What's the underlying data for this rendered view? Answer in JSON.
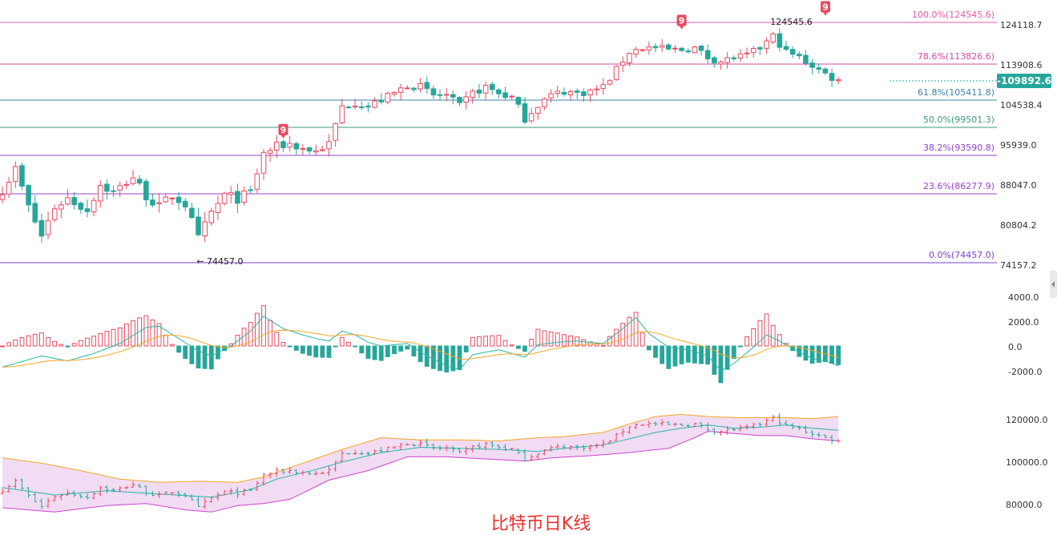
{
  "caption": "比特币日K线",
  "colors": {
    "up": "#e84a5f",
    "down": "#26a69a",
    "ma_fast": "#26b5a8",
    "ma_slow": "#f5a623",
    "band_fill": "#f1dcf3",
    "band_lower": "#cc44cc",
    "current_price_bg": "#26a69a",
    "td_marker": "#e84a5f"
  },
  "price_axis": {
    "ticks": [
      "124118.7",
      "113908.6",
      "104538.4",
      "95939.0",
      "88047.0",
      "80804.2",
      "74157.2"
    ]
  },
  "macd_axis": {
    "ticks": [
      "4000.0",
      "2000.0",
      "0.0",
      "-2000.0"
    ]
  },
  "boll_axis": {
    "ticks": [
      "120000.0",
      "100000.0",
      "80000.0"
    ]
  },
  "current_price": "109892.6",
  "annotations": {
    "high_label": "124545.6",
    "low_label": "74457.0",
    "td_marker": "9"
  },
  "chart_data": {
    "type": "candlestick",
    "price_ylim": [
      74157.2,
      124118.7
    ],
    "fib_levels": [
      {
        "label": "100.0%(124545.6)",
        "value": 124545.6,
        "color": "#e05aa8"
      },
      {
        "label": "78.6%(113826.6)",
        "value": 113826.6,
        "color": "#d14ca5"
      },
      {
        "label": "61.8%(105411.8)",
        "value": 105411.8,
        "color": "#3d7fa8"
      },
      {
        "label": "50.0%(99501.3)",
        "value": 99501.3,
        "color": "#3a9a7a"
      },
      {
        "label": "38.2%(93590.8)",
        "value": 93590.8,
        "color": "#8e3fc8"
      },
      {
        "label": "23.6%(86277.9)",
        "value": 86277.9,
        "color": "#9f3fc8"
      },
      {
        "label": "0.0%(74457.0)",
        "value": 74457.0,
        "color": "#7a3fc8"
      }
    ],
    "close_path": [
      [
        0,
        87000
      ],
      [
        2,
        91000
      ],
      [
        4,
        84000
      ],
      [
        6,
        79000
      ],
      [
        8,
        84000
      ],
      [
        10,
        85500
      ],
      [
        13,
        83500
      ],
      [
        15,
        88000
      ],
      [
        17,
        86500
      ],
      [
        20,
        89500
      ],
      [
        22,
        86000
      ],
      [
        24,
        84000
      ],
      [
        26,
        86000
      ],
      [
        28,
        84500
      ],
      [
        30,
        78500
      ],
      [
        32,
        83000
      ],
      [
        34,
        86000
      ],
      [
        36,
        85500
      ],
      [
        38,
        86500
      ],
      [
        40,
        94000
      ],
      [
        42,
        95500
      ],
      [
        44,
        96000
      ],
      [
        46,
        95000
      ],
      [
        48,
        94500
      ],
      [
        50,
        96000
      ],
      [
        52,
        104000
      ],
      [
        54,
        105000
      ],
      [
        56,
        104000
      ],
      [
        58,
        105500
      ],
      [
        60,
        107000
      ],
      [
        62,
        109000
      ],
      [
        64,
        108500
      ],
      [
        66,
        106500
      ],
      [
        68,
        106500
      ],
      [
        70,
        104000
      ],
      [
        72,
        107000
      ],
      [
        74,
        108500
      ],
      [
        76,
        107000
      ],
      [
        78,
        106000
      ],
      [
        80,
        101500
      ],
      [
        82,
        104500
      ],
      [
        84,
        106500
      ],
      [
        86,
        107500
      ],
      [
        88,
        107000
      ],
      [
        90,
        107500
      ],
      [
        92,
        108500
      ],
      [
        94,
        112500
      ],
      [
        96,
        117000
      ],
      [
        98,
        118000
      ],
      [
        100,
        118000
      ],
      [
        102,
        117500
      ],
      [
        104,
        117500
      ],
      [
        106,
        118000
      ],
      [
        108,
        115500
      ],
      [
        110,
        114500
      ],
      [
        112,
        115500
      ],
      [
        114,
        116000
      ],
      [
        116,
        118000
      ],
      [
        118,
        121000
      ],
      [
        120,
        117000
      ],
      [
        122,
        115500
      ],
      [
        124,
        113500
      ],
      [
        126,
        111500
      ],
      [
        128,
        109900
      ]
    ],
    "macd": [
      [
        0,
        -1700
      ],
      [
        6,
        -800
      ],
      [
        10,
        -1200
      ],
      [
        14,
        -600
      ],
      [
        18,
        200
      ],
      [
        22,
        1500
      ],
      [
        24,
        1600
      ],
      [
        27,
        600
      ],
      [
        30,
        -400
      ],
      [
        32,
        -800
      ],
      [
        35,
        0
      ],
      [
        38,
        1200
      ],
      [
        40,
        2400
      ],
      [
        43,
        1400
      ],
      [
        46,
        900
      ],
      [
        48,
        600
      ],
      [
        50,
        400
      ],
      [
        52,
        1200
      ],
      [
        54,
        900
      ],
      [
        56,
        300
      ],
      [
        58,
        0
      ],
      [
        62,
        200
      ],
      [
        65,
        -800
      ],
      [
        68,
        -1600
      ],
      [
        70,
        -1900
      ],
      [
        72,
        -700
      ],
      [
        76,
        -300
      ],
      [
        80,
        -900
      ],
      [
        82,
        100
      ],
      [
        85,
        300
      ],
      [
        88,
        400
      ],
      [
        92,
        200
      ],
      [
        95,
        1400
      ],
      [
        97,
        2300
      ],
      [
        99,
        1000
      ],
      [
        102,
        -100
      ],
      [
        105,
        -300
      ],
      [
        108,
        -800
      ],
      [
        110,
        -2000
      ],
      [
        112,
        -1400
      ],
      [
        115,
        -100
      ],
      [
        117,
        900
      ],
      [
        119,
        400
      ],
      [
        122,
        -500
      ],
      [
        124,
        -1000
      ],
      [
        126,
        -1200
      ],
      [
        128,
        -1600
      ]
    ],
    "boll_mid": [
      [
        0,
        88000
      ],
      [
        8,
        84500
      ],
      [
        16,
        86500
      ],
      [
        24,
        85000
      ],
      [
        32,
        83500
      ],
      [
        38,
        87000
      ],
      [
        42,
        92000
      ],
      [
        48,
        96500
      ],
      [
        52,
        100000
      ],
      [
        58,
        104500
      ],
      [
        64,
        107000
      ],
      [
        70,
        106500
      ],
      [
        76,
        106000
      ],
      [
        82,
        105000
      ],
      [
        86,
        106500
      ],
      [
        92,
        108000
      ],
      [
        96,
        111000
      ],
      [
        100,
        114000
      ],
      [
        104,
        116000
      ],
      [
        108,
        117500
      ],
      [
        112,
        116000
      ],
      [
        116,
        116500
      ],
      [
        120,
        117500
      ],
      [
        124,
        116000
      ],
      [
        128,
        115000
      ]
    ],
    "boll_upper": [
      [
        0,
        102000
      ],
      [
        6,
        99500
      ],
      [
        12,
        96000
      ],
      [
        18,
        92000
      ],
      [
        24,
        90500
      ],
      [
        30,
        91000
      ],
      [
        36,
        90500
      ],
      [
        40,
        93000
      ],
      [
        46,
        99500
      ],
      [
        52,
        106000
      ],
      [
        58,
        111500
      ],
      [
        64,
        110500
      ],
      [
        70,
        110500
      ],
      [
        76,
        110000
      ],
      [
        82,
        111500
      ],
      [
        86,
        112000
      ],
      [
        92,
        114000
      ],
      [
        96,
        118000
      ],
      [
        100,
        121500
      ],
      [
        104,
        122500
      ],
      [
        108,
        121500
      ],
      [
        112,
        121000
      ],
      [
        116,
        121000
      ],
      [
        120,
        121000
      ],
      [
        124,
        120500
      ],
      [
        128,
        121500
      ]
    ],
    "boll_lower": [
      [
        0,
        78500
      ],
      [
        8,
        76500
      ],
      [
        16,
        79500
      ],
      [
        22,
        80500
      ],
      [
        28,
        77500
      ],
      [
        32,
        76500
      ],
      [
        36,
        79500
      ],
      [
        40,
        80500
      ],
      [
        44,
        82500
      ],
      [
        50,
        91500
      ],
      [
        56,
        96000
      ],
      [
        62,
        102500
      ],
      [
        68,
        102500
      ],
      [
        74,
        101500
      ],
      [
        80,
        100500
      ],
      [
        84,
        102000
      ],
      [
        90,
        103000
      ],
      [
        96,
        104500
      ],
      [
        102,
        106500
      ],
      [
        106,
        111500
      ],
      [
        108,
        114500
      ],
      [
        112,
        113500
      ],
      [
        116,
        112500
      ],
      [
        120,
        112500
      ],
      [
        124,
        111000
      ],
      [
        128,
        110000
      ]
    ]
  }
}
